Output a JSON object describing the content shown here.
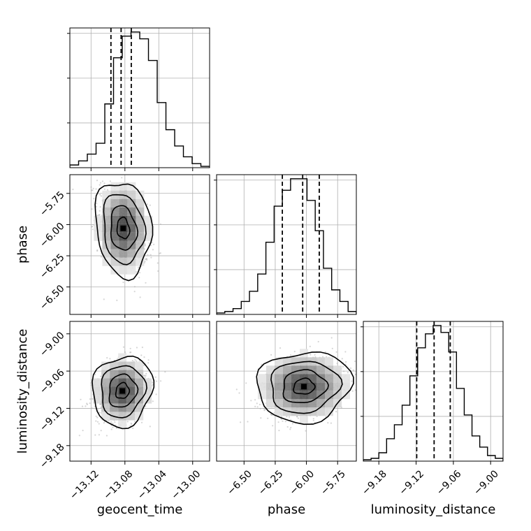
{
  "chart_data": {
    "type": "corner",
    "parameters": [
      "geocent_time",
      "phase",
      "luminosity_distance"
    ],
    "axis_labels": {
      "geocent_time": "geocent_time",
      "phase": "phase",
      "luminosity_distance": "luminosity_distance"
    },
    "ranges": {
      "geocent_time": [
        -13.145,
        -12.98
      ],
      "phase": [
        -6.72,
        -5.6
      ],
      "luminosity_distance": [
        -9.205,
        -8.98
      ]
    },
    "ticks": {
      "geocent_time": [
        -13.12,
        -13.08,
        -13.04,
        -13.0
      ],
      "phase": [
        -6.5,
        -6.25,
        -6.0,
        -5.75
      ],
      "luminosity_distance": [
        -9.18,
        -9.12,
        -9.06,
        -9.0
      ]
    },
    "tick_labels": {
      "geocent_time": [
        "−13.12",
        "−13.08",
        "−13.04",
        "−13.00"
      ],
      "phase": [
        "−6.50",
        "−6.25",
        "−6.00",
        "−5.75"
      ],
      "luminosity_distance": [
        "−9.18",
        "−9.12",
        "−9.06",
        "−9.00"
      ]
    },
    "quantiles": {
      "geocent_time": [
        -13.0965,
        -13.0845,
        -13.0725
      ],
      "phase": [
        -6.193,
        -6.03,
        -5.897
      ],
      "luminosity_distance": [
        -9.119,
        -9.091,
        -9.065
      ]
    },
    "histograms": {
      "geocent_time": {
        "counts": [
          2,
          5,
          10,
          18,
          47,
          81,
          97,
          100,
          95,
          79,
          48,
          28,
          16,
          8,
          3,
          1
        ],
        "yticks": [
          0.33,
          0.66,
          0.99
        ]
      },
      "phase": {
        "counts": [
          1,
          2,
          4,
          9,
          16,
          28,
          50,
          75,
          86,
          94,
          94,
          79,
          58,
          32,
          17,
          9,
          2
        ],
        "yticks": [
          0.33,
          0.66,
          0.99
        ]
      },
      "luminosity_distance": {
        "counts": [
          1,
          2,
          6,
          16,
          26,
          40,
          61,
          81,
          91,
          97,
          92,
          78,
          52,
          33,
          18,
          10,
          4,
          2
        ],
        "yticks": [
          0.33,
          0.66,
          0.99
        ]
      }
    },
    "pairs": [
      {
        "x": "geocent_time",
        "y": "phase",
        "center": [
          -13.082,
          -6.03
        ],
        "sd": [
          0.014,
          0.16
        ],
        "corr": -0.35
      },
      {
        "x": "geocent_time",
        "y": "luminosity_distance",
        "center": [
          -13.083,
          -9.092
        ],
        "sd": [
          0.015,
          0.024
        ],
        "corr": 0.25
      },
      {
        "x": "phase",
        "y": "luminosity_distance",
        "center": [
          -6.02,
          -9.085
        ],
        "sd": [
          0.16,
          0.024
        ],
        "corr": 0.2
      }
    ],
    "histogram_style": "step",
    "quantile_style": "dashed",
    "grid": true,
    "colors": {
      "line": "#000000",
      "grid": "#b0b0b0",
      "points": "#b4b4b4"
    }
  }
}
